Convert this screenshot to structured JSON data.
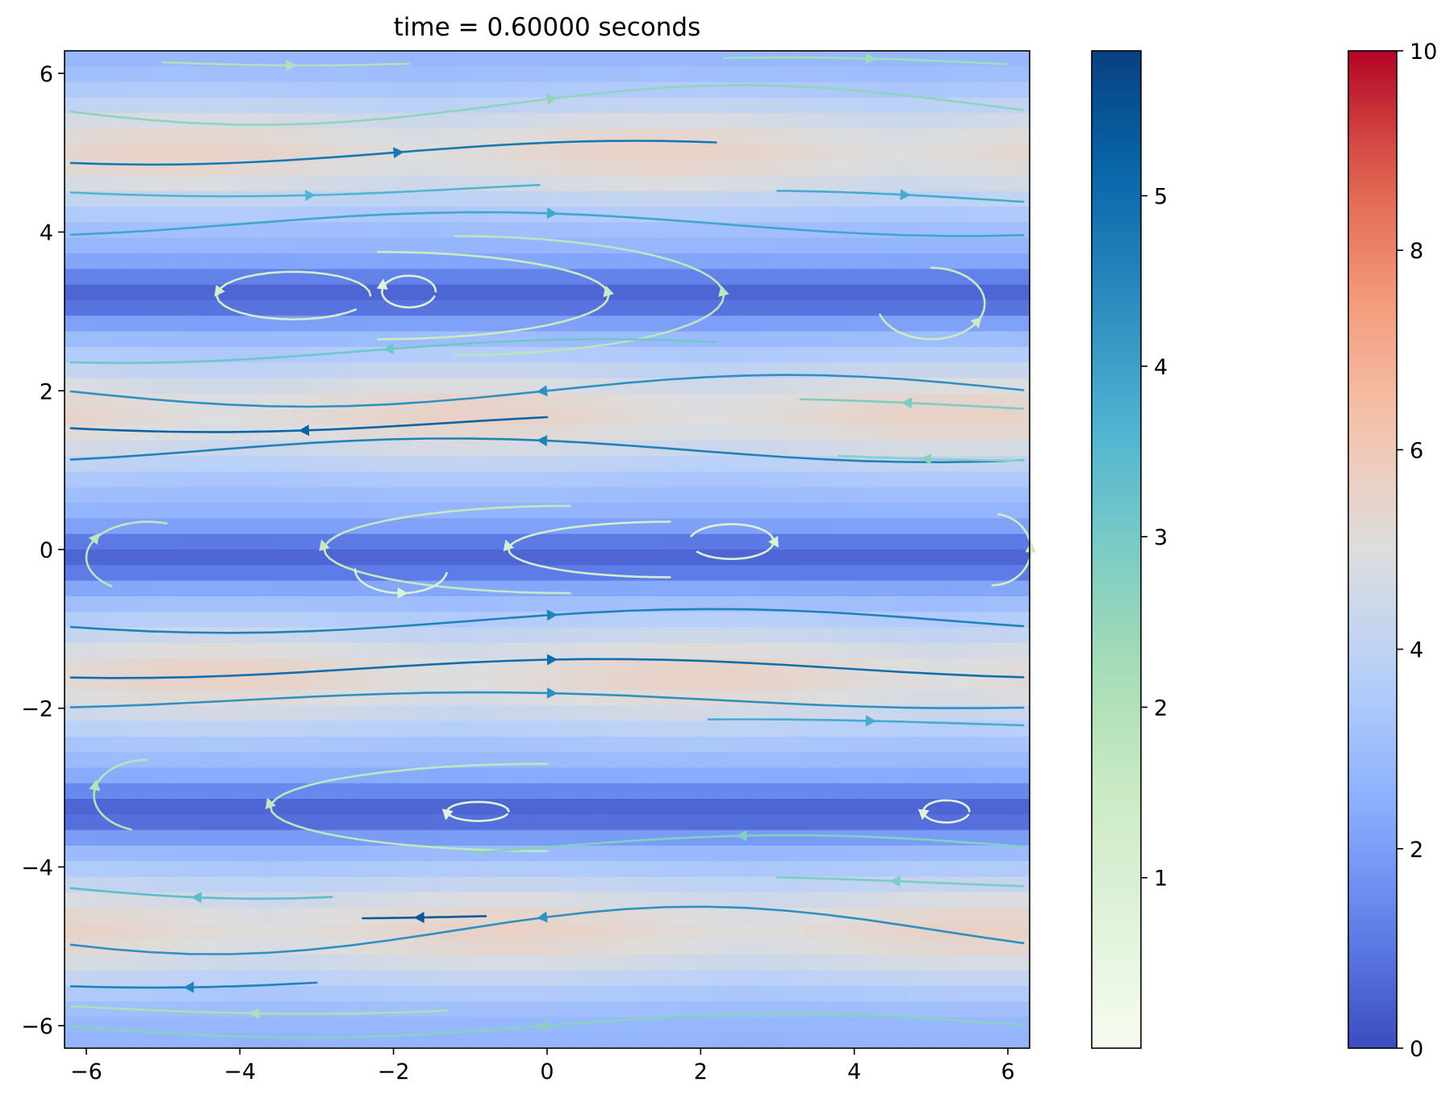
{
  "chart_data": {
    "type": "heatmap",
    "title": "time = 0.60000 seconds",
    "xlabel": "",
    "ylabel": "",
    "xlim": [
      -6.2832,
      6.2832
    ],
    "ylim": [
      -6.2832,
      6.2832
    ],
    "grid": false,
    "x_ticks": [
      -6,
      -4,
      -2,
      0,
      2,
      4,
      6
    ],
    "y_ticks": [
      -6,
      -4,
      -2,
      0,
      2,
      4,
      6
    ],
    "x_tick_labels": [
      "−6",
      "−4",
      "−2",
      "0",
      "2",
      "4",
      "6"
    ],
    "y_tick_labels": [
      "−6",
      "−4",
      "−2",
      "0",
      "2",
      "4",
      "6"
    ],
    "field": {
      "description_of_layers": [
        "background scalar field (coolwarm)",
        "streamlines colored by speed (GnBu)"
      ],
      "speed_scale_range": [
        0,
        5.85
      ],
      "background_scale_range": [
        0,
        10
      ],
      "high_bands_y": [
        5.0,
        1.7,
        -1.6,
        -4.8
      ],
      "low_bands_y": [
        3.2,
        -0.1,
        -3.3
      ],
      "high_band_peaks_x": [
        1.5,
        -1.0,
        2.0,
        -0.5
      ],
      "peak_value": 6.0,
      "trough_value": 0.6
    },
    "colorbars": [
      {
        "name": "speed",
        "colormap": "GnBu",
        "min": 0,
        "max": 5.85,
        "ticks": [
          1,
          2,
          3,
          4,
          5
        ],
        "tick_labels": [
          "1",
          "2",
          "3",
          "4",
          "5"
        ]
      },
      {
        "name": "background",
        "colormap": "coolwarm",
        "min": 0,
        "max": 10,
        "ticks": [
          0,
          2,
          4,
          6,
          8,
          10
        ],
        "tick_labels": [
          "0",
          "2",
          "4",
          "6",
          "8",
          "10"
        ]
      }
    ]
  },
  "colors": {
    "coolwarm_low": "#3b4cc0",
    "coolwarm_mid": "#dddddd",
    "coolwarm_high": "#b40426",
    "gnbu_low": "#f7fcf0",
    "gnbu_high": "#08407e"
  }
}
